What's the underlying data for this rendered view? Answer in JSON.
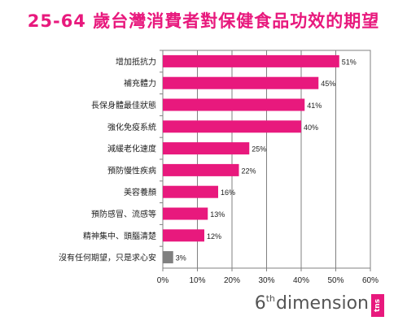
{
  "chart_data": {
    "type": "bar",
    "orientation": "horizontal",
    "title": "25-64 歲台灣消費者對保健食品功效的期望",
    "categories": [
      "增加抵抗力",
      "補充體力",
      "長保身體最佳狀態",
      "強化免疫系統",
      "減緩老化速度",
      "預防慢性疾病",
      "美容養顏",
      "預防感冒、流感等",
      "精神集中、頭腦清楚",
      "沒有任何期望，只是求心安"
    ],
    "values": [
      51,
      45,
      41,
      40,
      25,
      22,
      16,
      13,
      12,
      3
    ],
    "value_labels": [
      "51%",
      "45%",
      "41%",
      "40%",
      "25%",
      "22%",
      "16%",
      "13%",
      "12%",
      "3%"
    ],
    "xlim": [
      0,
      60
    ],
    "x_ticks": [
      "0%",
      "10%",
      "20%",
      "30%",
      "40%",
      "50%",
      "60%"
    ],
    "grid": true,
    "colors": {
      "bar": "#e8197d",
      "last_bar": "#808080",
      "title": "#e8197d"
    }
  },
  "brand": {
    "number": "6",
    "sup": "th",
    "word": "dimension",
    "badge": "tns"
  }
}
